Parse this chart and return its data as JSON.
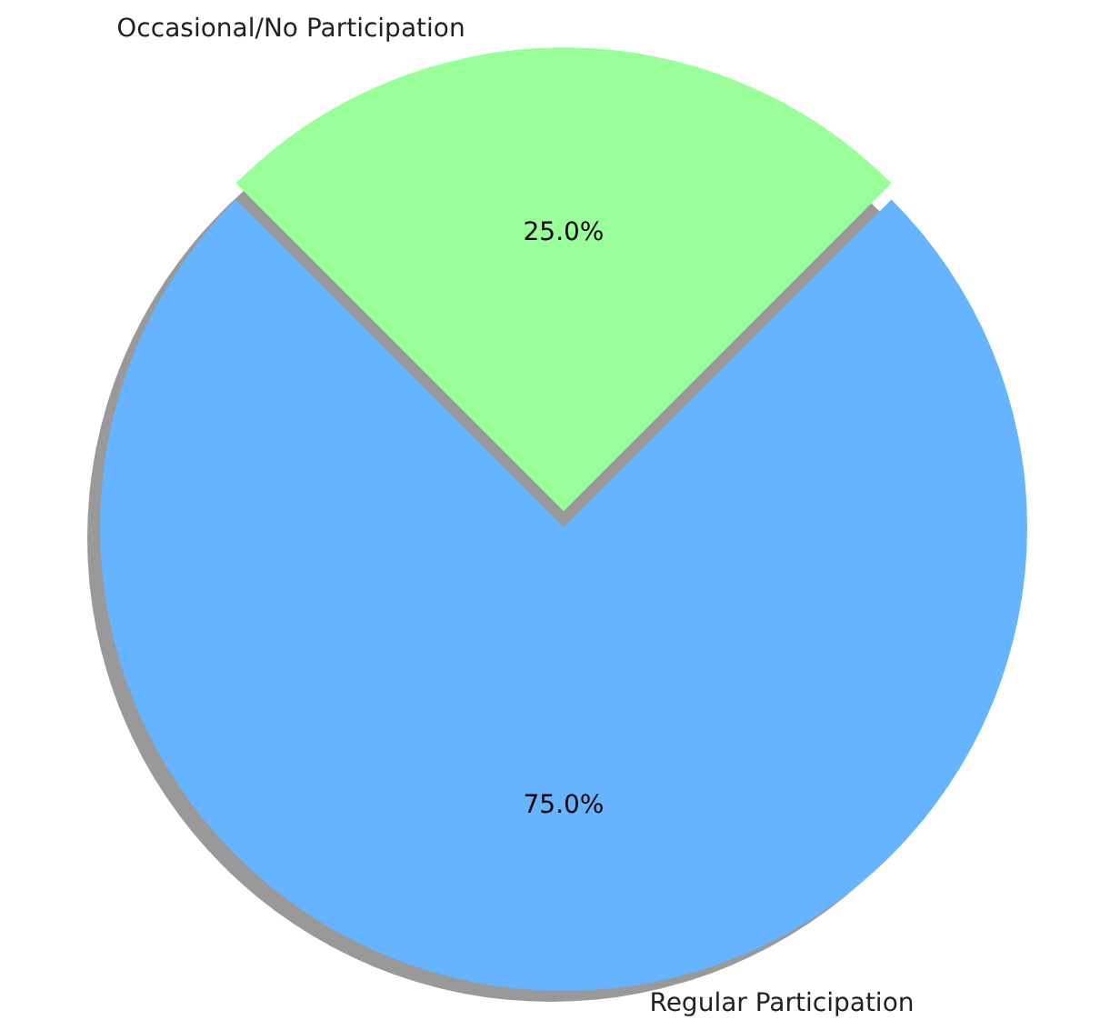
{
  "chart_data": {
    "type": "pie",
    "categories": [
      "Regular Participation",
      "Occasional/No Participation"
    ],
    "values": [
      75,
      25
    ],
    "value_labels": [
      "75.0%",
      "25.0%"
    ],
    "colors": [
      "#66b3ff",
      "#99ff99"
    ],
    "data_labels": true
  }
}
